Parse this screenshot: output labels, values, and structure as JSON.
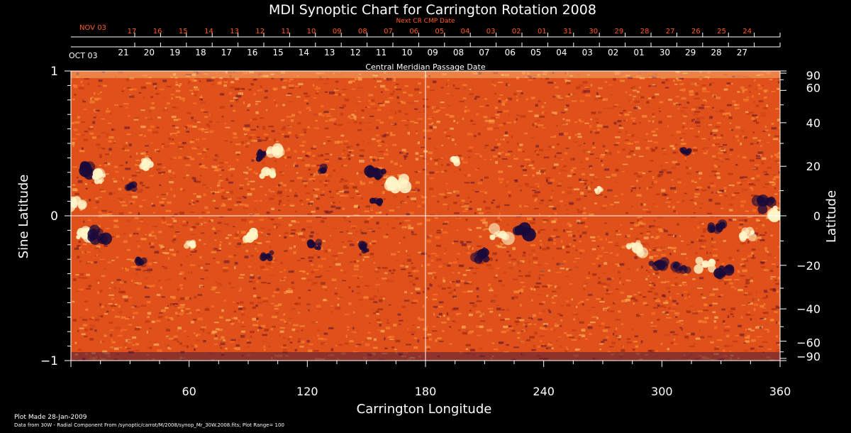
{
  "chart_data": {
    "type": "heatmap",
    "title": "MDI Synoptic Chart for Carrington Rotation 2008",
    "xlabel": "Carrington Longitude",
    "ylabel_left": "Sine Latitude",
    "ylabel_right": "Latitude",
    "xlim": [
      0,
      360
    ],
    "ylim": [
      -1,
      1
    ],
    "x_ticks": [
      60,
      120,
      180,
      240,
      300,
      360
    ],
    "y_left_ticks": [
      {
        "v": 1,
        "label": "1"
      },
      {
        "v": 0,
        "label": "0"
      },
      {
        "v": -1,
        "label": "−1"
      }
    ],
    "y_right_ticks": [
      {
        "deg": 90,
        "label": "90"
      },
      {
        "deg": 60,
        "label": "60"
      },
      {
        "deg": 40,
        "label": "40"
      },
      {
        "deg": 20,
        "label": "20"
      },
      {
        "deg": 0,
        "label": "0"
      },
      {
        "deg": -20,
        "label": "−20"
      },
      {
        "deg": -40,
        "label": "−40"
      },
      {
        "deg": -60,
        "label": "−60"
      },
      {
        "deg": -90,
        "label": "−90"
      }
    ],
    "cmp_label": "Central Meridian Passage Date",
    "cmp_dates": [
      "21",
      "20",
      "19",
      "18",
      "17",
      "16",
      "15",
      "14",
      "13",
      "12",
      "11",
      "10",
      "09",
      "08",
      "07",
      "06",
      "05",
      "04",
      "03",
      "02",
      "01",
      "30",
      "29",
      "28",
      "27"
    ],
    "cmp_month_label": "OCT 03",
    "next_cmp_label": "Next CR CMP Date",
    "next_cmp_dates": [
      "17",
      "16",
      "15",
      "14",
      "13",
      "12",
      "11",
      "10",
      "09",
      "08",
      "07",
      "06",
      "05",
      "04",
      "03",
      "02",
      "01",
      "31",
      "30",
      "29",
      "28",
      "27",
      "26",
      "25",
      "24"
    ],
    "next_cmp_month_label": "NOV 03",
    "background_color": "#e0501a",
    "regions": [
      {
        "lon": 8,
        "lat": 0.32,
        "polarity": "negative",
        "strength": 1.0
      },
      {
        "lon": 14,
        "lat": 0.27,
        "polarity": "positive",
        "strength": 0.9
      },
      {
        "lon": 3,
        "lat": 0.08,
        "polarity": "positive",
        "strength": 0.8
      },
      {
        "lon": 7,
        "lat": -0.13,
        "polarity": "positive",
        "strength": 0.8
      },
      {
        "lon": 14,
        "lat": -0.13,
        "polarity": "negative",
        "strength": 0.9
      },
      {
        "lon": 38,
        "lat": 0.36,
        "polarity": "positive",
        "strength": 0.7
      },
      {
        "lon": 30,
        "lat": 0.2,
        "polarity": "negative",
        "strength": 0.5
      },
      {
        "lon": 95,
        "lat": 0.42,
        "polarity": "negative",
        "strength": 0.7
      },
      {
        "lon": 103,
        "lat": 0.44,
        "polarity": "positive",
        "strength": 0.8
      },
      {
        "lon": 100,
        "lat": 0.3,
        "polarity": "positive",
        "strength": 0.7
      },
      {
        "lon": 126,
        "lat": 0.32,
        "polarity": "negative",
        "strength": 0.6
      },
      {
        "lon": 155,
        "lat": 0.3,
        "polarity": "negative",
        "strength": 0.9
      },
      {
        "lon": 166,
        "lat": 0.22,
        "polarity": "positive",
        "strength": 1.0
      },
      {
        "lon": 155,
        "lat": 0.1,
        "polarity": "negative",
        "strength": 0.5
      },
      {
        "lon": 92,
        "lat": -0.14,
        "polarity": "positive",
        "strength": 0.7
      },
      {
        "lon": 100,
        "lat": -0.27,
        "polarity": "negative",
        "strength": 0.6
      },
      {
        "lon": 124,
        "lat": -0.2,
        "polarity": "negative",
        "strength": 0.6
      },
      {
        "lon": 148,
        "lat": -0.22,
        "polarity": "negative",
        "strength": 0.6
      },
      {
        "lon": 35,
        "lat": -0.32,
        "polarity": "negative",
        "strength": 0.6
      },
      {
        "lon": 60,
        "lat": -0.2,
        "polarity": "positive",
        "strength": 0.5
      },
      {
        "lon": 230,
        "lat": -0.12,
        "polarity": "negative",
        "strength": 1.0
      },
      {
        "lon": 218,
        "lat": -0.12,
        "polarity": "positive",
        "strength": 1.0
      },
      {
        "lon": 208,
        "lat": -0.28,
        "polarity": "negative",
        "strength": 0.7
      },
      {
        "lon": 287,
        "lat": -0.22,
        "polarity": "positive",
        "strength": 0.9
      },
      {
        "lon": 298,
        "lat": -0.33,
        "polarity": "negative",
        "strength": 0.8
      },
      {
        "lon": 310,
        "lat": -0.36,
        "polarity": "negative",
        "strength": 0.8
      },
      {
        "lon": 322,
        "lat": -0.34,
        "polarity": "positive",
        "strength": 0.8
      },
      {
        "lon": 332,
        "lat": -0.38,
        "polarity": "negative",
        "strength": 0.8
      },
      {
        "lon": 328,
        "lat": -0.08,
        "polarity": "negative",
        "strength": 0.7
      },
      {
        "lon": 343,
        "lat": -0.13,
        "polarity": "positive",
        "strength": 0.7
      },
      {
        "lon": 352,
        "lat": 0.08,
        "polarity": "negative",
        "strength": 0.9
      },
      {
        "lon": 357,
        "lat": 0.02,
        "polarity": "positive",
        "strength": 0.9
      },
      {
        "lon": 312,
        "lat": 0.45,
        "polarity": "negative",
        "strength": 0.5
      },
      {
        "lon": 195,
        "lat": 0.38,
        "polarity": "positive",
        "strength": 0.5
      },
      {
        "lon": 268,
        "lat": 0.18,
        "polarity": "positive",
        "strength": 0.4
      }
    ]
  },
  "footer": {
    "plot_made": "Plot Made 28-Jan-2009",
    "data_source": "Data from 30W - Radial Component From /synoptic/carrot/M/2008/synop_Mr_30W.2008.fits; Plot Range= 100"
  }
}
